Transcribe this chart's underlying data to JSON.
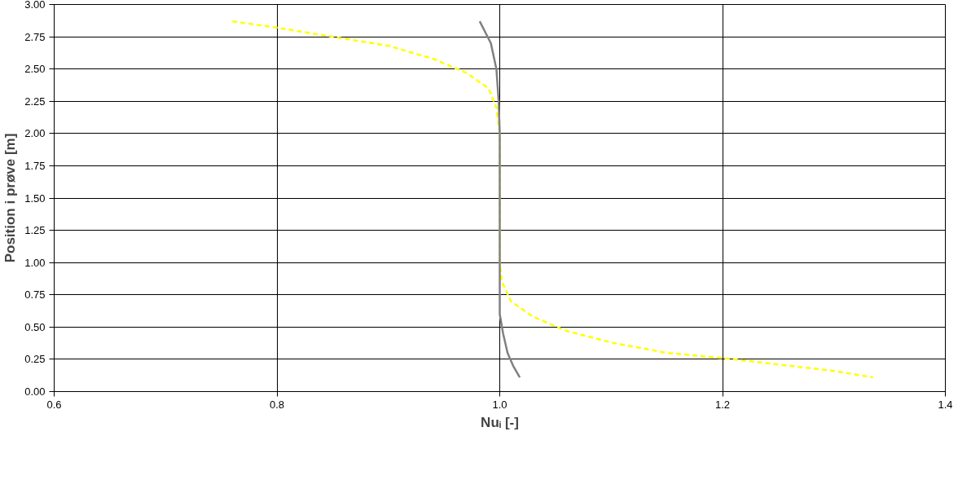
{
  "chart_data": {
    "type": "line",
    "xlabel": "Nuᵢ [-]",
    "ylabel": "Position i prøve [m]",
    "xlim": [
      0.6,
      1.4
    ],
    "ylim": [
      0,
      3
    ],
    "xticks": [
      {
        "value": 0.6,
        "label": "0.6"
      },
      {
        "value": 0.8,
        "label": "0.8"
      },
      {
        "value": 1.0,
        "label": "1.0"
      },
      {
        "value": 1.2,
        "label": "1.2"
      },
      {
        "value": 1.4,
        "label": "1.4"
      }
    ],
    "yticks": [
      {
        "value": 0,
        "label": "0.00"
      },
      {
        "value": 0.25,
        "label": "0.25"
      },
      {
        "value": 0.5,
        "label": "0.50"
      },
      {
        "value": 0.75,
        "label": "0.75"
      },
      {
        "value": 1.0,
        "label": "1.00"
      },
      {
        "value": 1.25,
        "label": "1.25"
      },
      {
        "value": 1.5,
        "label": "1.50"
      },
      {
        "value": 1.75,
        "label": "1.75"
      },
      {
        "value": 2.0,
        "label": "2.00"
      },
      {
        "value": 2.25,
        "label": "2.25"
      },
      {
        "value": 2.5,
        "label": "2.50"
      },
      {
        "value": 2.75,
        "label": "2.75"
      },
      {
        "value": 3.0,
        "label": "3.00"
      }
    ],
    "grid": true,
    "marker": "none",
    "series": [
      {
        "color": "#ffff00",
        "line_style": "dashed",
        "x": [
          0.76,
          0.8,
          0.85,
          0.9,
          0.94,
          0.97,
          0.99,
          0.997,
          1.0,
          1.0,
          1.0,
          1.002,
          1.01,
          1.03,
          1.06,
          1.1,
          1.15,
          1.2,
          1.25,
          1.3,
          1.335
        ],
        "values": [
          2.87,
          2.82,
          2.75,
          2.68,
          2.58,
          2.47,
          2.35,
          2.2,
          2.0,
          1.5,
          1.0,
          0.85,
          0.7,
          0.58,
          0.47,
          0.38,
          0.3,
          0.26,
          0.21,
          0.16,
          0.11
        ]
      },
      {
        "color": "#808080",
        "line_style": "solid",
        "x": [
          0.982,
          0.992,
          0.997,
          0.999,
          1.0,
          1.0,
          1.0,
          1.003,
          1.007,
          1.012,
          1.018
        ],
        "values": [
          2.87,
          2.7,
          2.5,
          2.25,
          2.0,
          1.0,
          0.6,
          0.45,
          0.3,
          0.2,
          0.11
        ]
      }
    ]
  }
}
